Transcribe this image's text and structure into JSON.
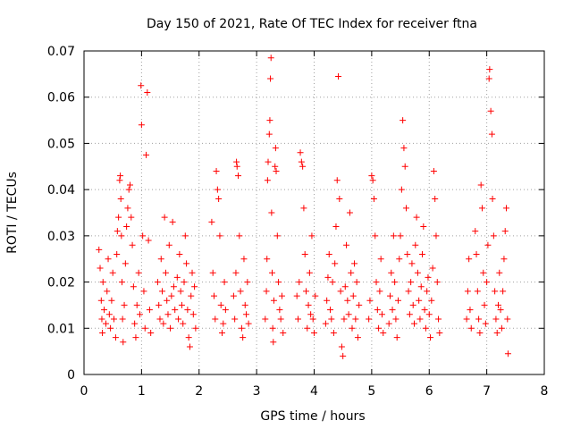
{
  "chart_data": {
    "type": "scatter",
    "title": "Day 150 of 2021, Rate Of TEC Index for receiver ftna",
    "xlabel": "GPS time / hours",
    "ylabel": "ROTI / TECUs",
    "xlim": [
      0,
      8
    ],
    "ylim": [
      0,
      0.07
    ],
    "x_ticks": [
      "0",
      "1",
      "2",
      "3",
      "4",
      "5",
      "6",
      "7",
      "8"
    ],
    "y_ticks": [
      "0",
      "0.01",
      "0.02",
      "0.03",
      "0.04",
      "0.05",
      "0.06",
      "0.07"
    ],
    "grid": true,
    "marker": "+",
    "color": "#ff0000",
    "series": [
      {
        "name": "ROTI",
        "points": [
          [
            0.26,
            0.027
          ],
          [
            0.28,
            0.023
          ],
          [
            0.3,
            0.016
          ],
          [
            0.31,
            0.012
          ],
          [
            0.32,
            0.009
          ],
          [
            0.33,
            0.02
          ],
          [
            0.35,
            0.014
          ],
          [
            0.38,
            0.011
          ],
          [
            0.4,
            0.018
          ],
          [
            0.42,
            0.025
          ],
          [
            0.44,
            0.013
          ],
          [
            0.46,
            0.01
          ],
          [
            0.48,
            0.016
          ],
          [
            0.5,
            0.022
          ],
          [
            0.52,
            0.012
          ],
          [
            0.55,
            0.008
          ],
          [
            0.57,
            0.026
          ],
          [
            0.58,
            0.031
          ],
          [
            0.6,
            0.034
          ],
          [
            0.62,
            0.042
          ],
          [
            0.63,
            0.043
          ],
          [
            0.64,
            0.038
          ],
          [
            0.65,
            0.03
          ],
          [
            0.66,
            0.02
          ],
          [
            0.67,
            0.012
          ],
          [
            0.68,
            0.007
          ],
          [
            0.7,
            0.015
          ],
          [
            0.72,
            0.024
          ],
          [
            0.74,
            0.032
          ],
          [
            0.76,
            0.036
          ],
          [
            0.78,
            0.04
          ],
          [
            0.8,
            0.041
          ],
          [
            0.82,
            0.034
          ],
          [
            0.84,
            0.028
          ],
          [
            0.86,
            0.019
          ],
          [
            0.88,
            0.011
          ],
          [
            0.9,
            0.008
          ],
          [
            0.92,
            0.015
          ],
          [
            0.95,
            0.022
          ],
          [
            0.97,
            0.013
          ],
          [
            0.99,
            0.0625
          ],
          [
            1.0,
            0.054
          ],
          [
            1.02,
            0.03
          ],
          [
            1.04,
            0.018
          ],
          [
            1.06,
            0.01
          ],
          [
            1.08,
            0.0475
          ],
          [
            1.1,
            0.061
          ],
          [
            1.12,
            0.029
          ],
          [
            1.14,
            0.014
          ],
          [
            1.16,
            0.009
          ],
          [
            1.28,
            0.02
          ],
          [
            1.3,
            0.015
          ],
          [
            1.32,
            0.012
          ],
          [
            1.34,
            0.025
          ],
          [
            1.36,
            0.018
          ],
          [
            1.38,
            0.011
          ],
          [
            1.4,
            0.034
          ],
          [
            1.42,
            0.022
          ],
          [
            1.44,
            0.016
          ],
          [
            1.46,
            0.013
          ],
          [
            1.48,
            0.028
          ],
          [
            1.5,
            0.01
          ],
          [
            1.52,
            0.017
          ],
          [
            1.54,
            0.033
          ],
          [
            1.56,
            0.019
          ],
          [
            1.58,
            0.014
          ],
          [
            1.62,
            0.021
          ],
          [
            1.64,
            0.012
          ],
          [
            1.66,
            0.026
          ],
          [
            1.68,
            0.018
          ],
          [
            1.7,
            0.015
          ],
          [
            1.72,
            0.011
          ],
          [
            1.74,
            0.02
          ],
          [
            1.76,
            0.03
          ],
          [
            1.78,
            0.024
          ],
          [
            1.8,
            0.014
          ],
          [
            1.82,
            0.008
          ],
          [
            1.84,
            0.006
          ],
          [
            1.86,
            0.017
          ],
          [
            1.88,
            0.022
          ],
          [
            1.9,
            0.013
          ],
          [
            1.92,
            0.019
          ],
          [
            1.94,
            0.01
          ],
          [
            2.22,
            0.033
          ],
          [
            2.24,
            0.022
          ],
          [
            2.26,
            0.017
          ],
          [
            2.28,
            0.012
          ],
          [
            2.3,
            0.044
          ],
          [
            2.32,
            0.04
          ],
          [
            2.34,
            0.038
          ],
          [
            2.36,
            0.03
          ],
          [
            2.38,
            0.015
          ],
          [
            2.4,
            0.009
          ],
          [
            2.42,
            0.011
          ],
          [
            2.44,
            0.02
          ],
          [
            2.46,
            0.014
          ],
          [
            2.6,
            0.017
          ],
          [
            2.62,
            0.012
          ],
          [
            2.64,
            0.022
          ],
          [
            2.65,
            0.046
          ],
          [
            2.66,
            0.045
          ],
          [
            2.68,
            0.043
          ],
          [
            2.7,
            0.03
          ],
          [
            2.72,
            0.018
          ],
          [
            2.74,
            0.01
          ],
          [
            2.76,
            0.008
          ],
          [
            2.78,
            0.025
          ],
          [
            2.8,
            0.015
          ],
          [
            2.82,
            0.013
          ],
          [
            2.84,
            0.02
          ],
          [
            2.86,
            0.011
          ],
          [
            3.15,
            0.012
          ],
          [
            3.17,
            0.018
          ],
          [
            3.18,
            0.025
          ],
          [
            3.19,
            0.042
          ],
          [
            3.2,
            0.046
          ],
          [
            3.22,
            0.052
          ],
          [
            3.23,
            0.055
          ],
          [
            3.24,
            0.064
          ],
          [
            3.25,
            0.0685
          ],
          [
            3.26,
            0.035
          ],
          [
            3.27,
            0.022
          ],
          [
            3.28,
            0.01
          ],
          [
            3.29,
            0.007
          ],
          [
            3.3,
            0.016
          ],
          [
            3.32,
            0.045
          ],
          [
            3.33,
            0.049
          ],
          [
            3.34,
            0.044
          ],
          [
            3.36,
            0.03
          ],
          [
            3.38,
            0.02
          ],
          [
            3.4,
            0.014
          ],
          [
            3.42,
            0.012
          ],
          [
            3.44,
            0.017
          ],
          [
            3.46,
            0.009
          ],
          [
            3.7,
            0.017
          ],
          [
            3.72,
            0.012
          ],
          [
            3.74,
            0.02
          ],
          [
            3.76,
            0.048
          ],
          [
            3.78,
            0.046
          ],
          [
            3.8,
            0.045
          ],
          [
            3.82,
            0.036
          ],
          [
            3.84,
            0.026
          ],
          [
            3.86,
            0.018
          ],
          [
            3.88,
            0.01
          ],
          [
            3.9,
            0.015
          ],
          [
            3.92,
            0.022
          ],
          [
            3.94,
            0.013
          ],
          [
            3.96,
            0.03
          ],
          [
            3.98,
            0.012
          ],
          [
            4.0,
            0.009
          ],
          [
            4.02,
            0.017
          ],
          [
            4.2,
            0.011
          ],
          [
            4.22,
            0.016
          ],
          [
            4.24,
            0.021
          ],
          [
            4.26,
            0.026
          ],
          [
            4.28,
            0.014
          ],
          [
            4.3,
            0.012
          ],
          [
            4.32,
            0.02
          ],
          [
            4.34,
            0.009
          ],
          [
            4.36,
            0.024
          ],
          [
            4.38,
            0.032
          ],
          [
            4.4,
            0.042
          ],
          [
            4.42,
            0.0645
          ],
          [
            4.44,
            0.038
          ],
          [
            4.46,
            0.018
          ],
          [
            4.48,
            0.006
          ],
          [
            4.5,
            0.004
          ],
          [
            4.52,
            0.012
          ],
          [
            4.54,
            0.019
          ],
          [
            4.56,
            0.028
          ],
          [
            4.58,
            0.016
          ],
          [
            4.6,
            0.013
          ],
          [
            4.62,
            0.035
          ],
          [
            4.64,
            0.022
          ],
          [
            4.66,
            0.01
          ],
          [
            4.68,
            0.017
          ],
          [
            4.7,
            0.024
          ],
          [
            4.72,
            0.012
          ],
          [
            4.74,
            0.02
          ],
          [
            4.76,
            0.008
          ],
          [
            4.78,
            0.015
          ],
          [
            4.95,
            0.012
          ],
          [
            4.97,
            0.016
          ],
          [
            5.0,
            0.043
          ],
          [
            5.02,
            0.042
          ],
          [
            5.04,
            0.038
          ],
          [
            5.06,
            0.03
          ],
          [
            5.08,
            0.02
          ],
          [
            5.1,
            0.014
          ],
          [
            5.12,
            0.01
          ],
          [
            5.14,
            0.018
          ],
          [
            5.16,
            0.025
          ],
          [
            5.18,
            0.013
          ],
          [
            5.2,
            0.009
          ],
          [
            5.3,
            0.011
          ],
          [
            5.32,
            0.017
          ],
          [
            5.34,
            0.022
          ],
          [
            5.36,
            0.014
          ],
          [
            5.38,
            0.03
          ],
          [
            5.4,
            0.02
          ],
          [
            5.42,
            0.012
          ],
          [
            5.44,
            0.008
          ],
          [
            5.46,
            0.016
          ],
          [
            5.48,
            0.025
          ],
          [
            5.5,
            0.03
          ],
          [
            5.52,
            0.04
          ],
          [
            5.54,
            0.055
          ],
          [
            5.56,
            0.049
          ],
          [
            5.58,
            0.045
          ],
          [
            5.6,
            0.036
          ],
          [
            5.62,
            0.026
          ],
          [
            5.64,
            0.018
          ],
          [
            5.66,
            0.013
          ],
          [
            5.68,
            0.02
          ],
          [
            5.7,
            0.024
          ],
          [
            5.72,
            0.015
          ],
          [
            5.74,
            0.011
          ],
          [
            5.76,
            0.028
          ],
          [
            5.78,
            0.034
          ],
          [
            5.8,
            0.022
          ],
          [
            5.82,
            0.016
          ],
          [
            5.84,
            0.012
          ],
          [
            5.86,
            0.019
          ],
          [
            5.88,
            0.026
          ],
          [
            5.9,
            0.032
          ],
          [
            5.92,
            0.014
          ],
          [
            5.94,
            0.01
          ],
          [
            5.96,
            0.018
          ],
          [
            5.98,
            0.021
          ],
          [
            6.0,
            0.013
          ],
          [
            6.02,
            0.008
          ],
          [
            6.04,
            0.016
          ],
          [
            6.06,
            0.023
          ],
          [
            6.08,
            0.044
          ],
          [
            6.1,
            0.038
          ],
          [
            6.12,
            0.03
          ],
          [
            6.14,
            0.02
          ],
          [
            6.16,
            0.012
          ],
          [
            6.18,
            0.009
          ],
          [
            6.65,
            0.012
          ],
          [
            6.67,
            0.018
          ],
          [
            6.69,
            0.025
          ],
          [
            6.71,
            0.014
          ],
          [
            6.73,
            0.01
          ],
          [
            6.8,
            0.031
          ],
          [
            6.82,
            0.026
          ],
          [
            6.84,
            0.018
          ],
          [
            6.86,
            0.012
          ],
          [
            6.88,
            0.009
          ],
          [
            6.9,
            0.041
          ],
          [
            6.92,
            0.036
          ],
          [
            6.94,
            0.022
          ],
          [
            6.96,
            0.015
          ],
          [
            6.98,
            0.011
          ],
          [
            7.0,
            0.02
          ],
          [
            7.02,
            0.028
          ],
          [
            7.04,
            0.064
          ],
          [
            7.05,
            0.066
          ],
          [
            7.07,
            0.057
          ],
          [
            7.09,
            0.052
          ],
          [
            7.1,
            0.038
          ],
          [
            7.12,
            0.03
          ],
          [
            7.14,
            0.018
          ],
          [
            7.16,
            0.012
          ],
          [
            7.18,
            0.009
          ],
          [
            7.2,
            0.015
          ],
          [
            7.22,
            0.022
          ],
          [
            7.24,
            0.014
          ],
          [
            7.26,
            0.01
          ],
          [
            7.28,
            0.018
          ],
          [
            7.3,
            0.025
          ],
          [
            7.32,
            0.031
          ],
          [
            7.34,
            0.036
          ],
          [
            7.36,
            0.012
          ],
          [
            7.37,
            0.0045
          ]
        ]
      }
    ]
  }
}
